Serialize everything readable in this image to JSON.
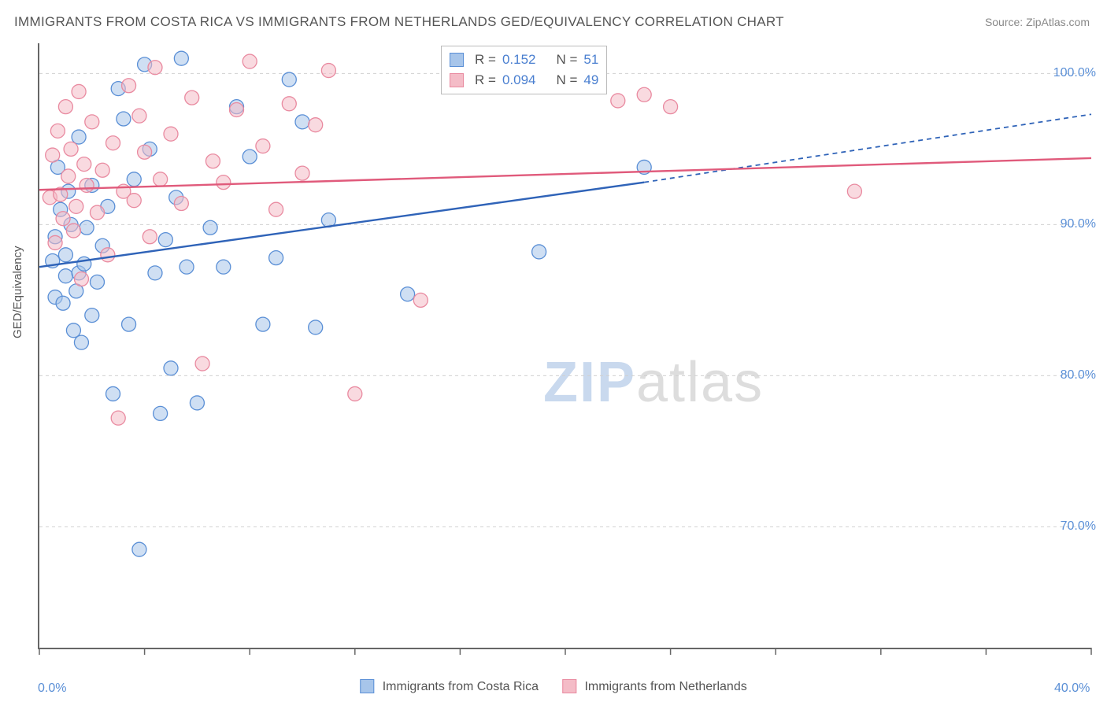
{
  "title": "IMMIGRANTS FROM COSTA RICA VS IMMIGRANTS FROM NETHERLANDS GED/EQUIVALENCY CORRELATION CHART",
  "source": "Source: ZipAtlas.com",
  "watermark": {
    "a": "ZIP",
    "b": "atlas"
  },
  "chart": {
    "type": "scatter",
    "y_axis_label": "GED/Equivalency",
    "background_color": "#ffffff",
    "grid_color": "#d0d0d0",
    "axis_color": "#666666",
    "tick_label_color": "#5a8fd6",
    "axis_label_color": "#555555",
    "xlim": [
      0,
      40
    ],
    "ylim": [
      62,
      102
    ],
    "x_ticks": [
      0,
      4,
      8,
      12,
      16,
      20,
      24,
      28,
      32,
      36,
      40
    ],
    "x_tick_labels": {
      "0": "0.0%",
      "40": "40.0%"
    },
    "y_grid": [
      70,
      80,
      90,
      100
    ],
    "y_tick_labels": {
      "70": "70.0%",
      "80": "80.0%",
      "90": "90.0%",
      "100": "100.0%"
    },
    "marker_radius": 9,
    "marker_opacity": 0.55,
    "series": [
      {
        "name": "Immigrants from Costa Rica",
        "fill_color": "#a7c5ea",
        "stroke_color": "#5a8fd6",
        "trend_color": "#2f63b8",
        "R": "0.152",
        "N": "51",
        "trend": {
          "x1": 0,
          "y1": 87.2,
          "x2_solid": 23,
          "y2_solid": 92.8,
          "x2_dash": 40,
          "y2_dash": 97.3
        },
        "points": [
          [
            0.5,
            87.6
          ],
          [
            0.6,
            85.2
          ],
          [
            0.6,
            89.2
          ],
          [
            0.7,
            93.8
          ],
          [
            0.8,
            91.0
          ],
          [
            0.9,
            84.8
          ],
          [
            1.0,
            88.0
          ],
          [
            1.0,
            86.6
          ],
          [
            1.1,
            92.2
          ],
          [
            1.2,
            90.0
          ],
          [
            1.3,
            83.0
          ],
          [
            1.4,
            85.6
          ],
          [
            1.5,
            86.8
          ],
          [
            1.5,
            95.8
          ],
          [
            1.6,
            82.2
          ],
          [
            1.7,
            87.4
          ],
          [
            1.8,
            89.8
          ],
          [
            2.0,
            84.0
          ],
          [
            2.0,
            92.6
          ],
          [
            2.2,
            86.2
          ],
          [
            2.4,
            88.6
          ],
          [
            2.6,
            91.2
          ],
          [
            2.8,
            78.8
          ],
          [
            3.0,
            99.0
          ],
          [
            3.2,
            97.0
          ],
          [
            3.4,
            83.4
          ],
          [
            3.6,
            93.0
          ],
          [
            3.8,
            68.5
          ],
          [
            4.0,
            100.6
          ],
          [
            4.2,
            95.0
          ],
          [
            4.4,
            86.8
          ],
          [
            4.6,
            77.5
          ],
          [
            4.8,
            89.0
          ],
          [
            5.0,
            80.5
          ],
          [
            5.2,
            91.8
          ],
          [
            5.4,
            101.0
          ],
          [
            5.6,
            87.2
          ],
          [
            6.0,
            78.2
          ],
          [
            6.5,
            89.8
          ],
          [
            7.0,
            87.2
          ],
          [
            7.5,
            97.8
          ],
          [
            8.0,
            94.5
          ],
          [
            8.5,
            83.4
          ],
          [
            9.0,
            87.8
          ],
          [
            9.5,
            99.6
          ],
          [
            10.0,
            96.8
          ],
          [
            10.5,
            83.2
          ],
          [
            11.0,
            90.3
          ],
          [
            14.0,
            85.4
          ],
          [
            19.0,
            88.2
          ],
          [
            23.0,
            93.8
          ]
        ]
      },
      {
        "name": "Immigrants from Netherlands",
        "fill_color": "#f4bcc7",
        "stroke_color": "#e98aa0",
        "trend_color": "#e05a7b",
        "R": "0.094",
        "N": "49",
        "trend": {
          "x1": 0,
          "y1": 92.3,
          "x2_solid": 40,
          "y2_solid": 94.4,
          "x2_dash": 40,
          "y2_dash": 94.4
        },
        "points": [
          [
            0.4,
            91.8
          ],
          [
            0.5,
            94.6
          ],
          [
            0.6,
            88.8
          ],
          [
            0.7,
            96.2
          ],
          [
            0.8,
            92.0
          ],
          [
            0.9,
            90.4
          ],
          [
            1.0,
            97.8
          ],
          [
            1.1,
            93.2
          ],
          [
            1.2,
            95.0
          ],
          [
            1.3,
            89.6
          ],
          [
            1.4,
            91.2
          ],
          [
            1.5,
            98.8
          ],
          [
            1.6,
            86.4
          ],
          [
            1.7,
            94.0
          ],
          [
            1.8,
            92.6
          ],
          [
            2.0,
            96.8
          ],
          [
            2.2,
            90.8
          ],
          [
            2.4,
            93.6
          ],
          [
            2.6,
            88.0
          ],
          [
            2.8,
            95.4
          ],
          [
            3.0,
            77.2
          ],
          [
            3.2,
            92.2
          ],
          [
            3.4,
            99.2
          ],
          [
            3.6,
            91.6
          ],
          [
            3.8,
            97.2
          ],
          [
            4.0,
            94.8
          ],
          [
            4.2,
            89.2
          ],
          [
            4.4,
            100.4
          ],
          [
            4.6,
            93.0
          ],
          [
            5.0,
            96.0
          ],
          [
            5.4,
            91.4
          ],
          [
            5.8,
            98.4
          ],
          [
            6.2,
            80.8
          ],
          [
            6.6,
            94.2
          ],
          [
            7.0,
            92.8
          ],
          [
            7.5,
            97.6
          ],
          [
            8.0,
            100.8
          ],
          [
            8.5,
            95.2
          ],
          [
            9.0,
            91.0
          ],
          [
            9.5,
            98.0
          ],
          [
            10.0,
            93.4
          ],
          [
            10.5,
            96.6
          ],
          [
            11.0,
            100.2
          ],
          [
            12.0,
            78.8
          ],
          [
            14.5,
            85.0
          ],
          [
            22.0,
            98.2
          ],
          [
            23.0,
            98.6
          ],
          [
            24.0,
            97.8
          ],
          [
            31.0,
            92.2
          ]
        ]
      }
    ],
    "stat_label_R": "R  =",
    "stat_label_N": "N  =",
    "legend_position": "bottom-center"
  }
}
